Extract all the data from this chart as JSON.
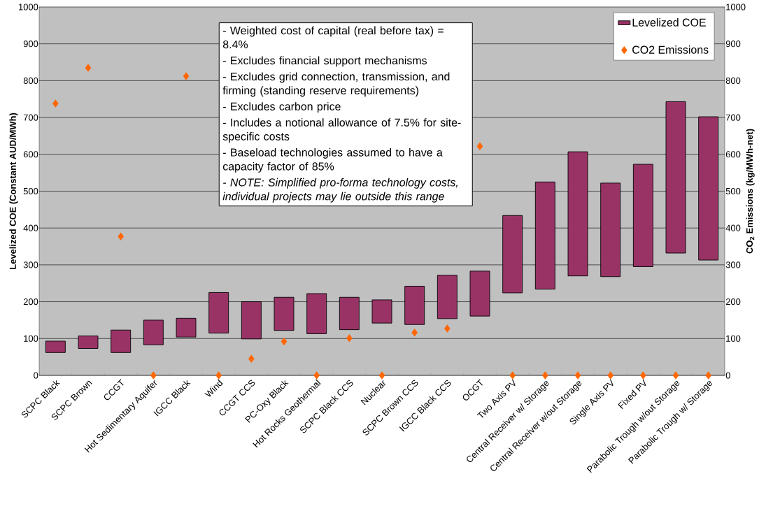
{
  "chart_data": {
    "type": "bar",
    "categories": [
      "SCPC Black",
      "SCPC Brown",
      "CCGT",
      "Hot Sedimentary Aquifer",
      "IGCC Black",
      "Wind",
      "CCGT CCS",
      "PC-Oxy Black",
      "Hot Rocks Geothermal",
      "SCPC Black CCS",
      "Nuclear",
      "SCPC Brown CCS",
      "IGCC Black CCS",
      "OCGT",
      "Two Axis PV",
      "Central Receiver w/ Storage",
      "Central Receiver w/out Storage",
      "Single Axis PV",
      "Fixed PV",
      "Parabolic Trough w/out Storage",
      "Parabolic Trough w/ Storage"
    ],
    "series": [
      {
        "name": "Levelized COE",
        "color": "#993366",
        "base": [
          62,
          73,
          62,
          83,
          104,
          115,
          99,
          122,
          113,
          124,
          142,
          138,
          154,
          161,
          224,
          234,
          270,
          268,
          295,
          332,
          313
        ],
        "values": [
          31,
          34,
          61,
          67,
          51,
          110,
          101,
          90,
          109,
          88,
          63,
          104,
          118,
          122,
          210,
          291,
          337,
          254,
          278,
          411,
          389
        ]
      },
      {
        "name": "CO2 Emissions",
        "type": "scatter",
        "axis": "y2",
        "color": "#ff6600",
        "values": [
          738,
          835,
          377,
          0,
          812,
          0,
          45,
          92,
          0,
          101,
          0,
          116,
          127,
          622,
          0,
          0,
          0,
          0,
          0,
          0,
          0
        ]
      }
    ],
    "ylabel": "Levelized COE (Constant AUD/MWh)",
    "y2label": "CO$_{2}$ Emissions (kg/MWh-net)",
    "ylim": [
      0,
      1000
    ],
    "yticks": [
      0,
      100,
      200,
      300,
      400,
      500,
      600,
      700,
      800,
      900,
      1000
    ],
    "y2lim": [
      0,
      1000
    ],
    "y2ticks": [
      0,
      100,
      200,
      300,
      400,
      500,
      600,
      700,
      800,
      900,
      1000
    ],
    "grid": "y",
    "legend": "top right",
    "marker": "diamond",
    "annotations": [
      "- Weighted cost of capital (real before tax) = 8.4%",
      "- Excludes financial support mechanisms",
      "- Excludes grid connection, transmission, and firming (standing reserve requirements)",
      "- Excludes carbon price",
      "- Includes a notional allowance of 7.5% for site-specific costs",
      "- Baseload technologies assumed to have a capacity factor of 85%",
      "*- NOTE: Simplified pro-forma technology costs, individual projects may lie outside this range*"
    ]
  }
}
